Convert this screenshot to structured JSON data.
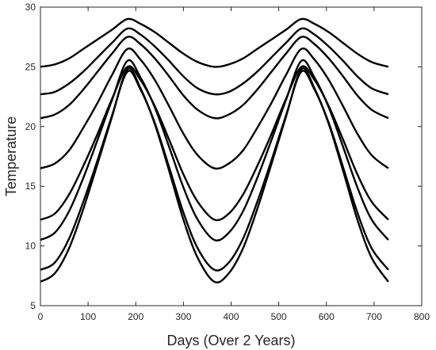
{
  "chart_data": {
    "type": "line",
    "xlabel": "Days (Over 2 Years)",
    "ylabel": "Temperature",
    "xlim": [
      0,
      800
    ],
    "ylim": [
      5,
      30
    ],
    "xticks": [
      "0",
      "100",
      "200",
      "300",
      "400",
      "500",
      "600",
      "700",
      "800"
    ],
    "yticks": [
      "5",
      "10",
      "15",
      "20",
      "25",
      "30"
    ],
    "grid": false,
    "legend": "none",
    "line_color": "#000000",
    "x": [
      0,
      30,
      60,
      90,
      120,
      150,
      182.5,
      210,
      240,
      270,
      300,
      330,
      365,
      395,
      425,
      455,
      485,
      515,
      547.5,
      575,
      605,
      635,
      665,
      695,
      730
    ],
    "series": [
      {
        "values": [
          25.0,
          25.2,
          25.7,
          26.5,
          27.3,
          28.1,
          29.0,
          28.6,
          27.9,
          27.0,
          26.1,
          25.4,
          25.0,
          25.2,
          25.7,
          26.5,
          27.3,
          28.1,
          29.0,
          28.6,
          27.9,
          27.0,
          26.1,
          25.4,
          25.0
        ]
      },
      {
        "values": [
          22.7,
          22.9,
          23.6,
          24.6,
          25.8,
          27.0,
          28.2,
          27.7,
          26.7,
          25.5,
          24.2,
          23.2,
          22.7,
          22.9,
          23.6,
          24.6,
          25.8,
          27.0,
          28.2,
          27.7,
          26.7,
          25.5,
          24.2,
          23.2,
          22.7
        ]
      },
      {
        "values": [
          20.7,
          21.0,
          21.8,
          23.1,
          24.6,
          26.1,
          27.5,
          26.9,
          25.7,
          24.2,
          22.6,
          21.4,
          20.7,
          21.0,
          21.8,
          23.1,
          24.6,
          26.1,
          27.5,
          26.9,
          25.7,
          24.2,
          22.6,
          21.4,
          20.7
        ]
      },
      {
        "values": [
          16.5,
          16.9,
          18.0,
          19.9,
          22.0,
          24.3,
          26.5,
          25.6,
          23.9,
          21.7,
          19.4,
          17.6,
          16.5,
          16.9,
          18.0,
          19.9,
          22.0,
          24.3,
          26.5,
          25.6,
          23.9,
          21.7,
          19.4,
          17.6,
          16.5
        ]
      },
      {
        "values": [
          12.2,
          12.7,
          14.3,
          16.7,
          19.4,
          22.3,
          25.0,
          23.9,
          21.7,
          18.9,
          16.0,
          13.7,
          12.2,
          12.7,
          14.3,
          16.7,
          19.4,
          22.3,
          25.0,
          23.9,
          21.7,
          18.9,
          16.0,
          13.7,
          12.2
        ]
      },
      {
        "values": [
          10.5,
          11.1,
          12.9,
          15.7,
          18.9,
          22.2,
          25.5,
          24.1,
          21.6,
          18.3,
          14.9,
          12.2,
          10.5,
          11.1,
          12.9,
          15.7,
          18.9,
          22.2,
          25.5,
          24.1,
          21.6,
          18.3,
          14.9,
          12.2,
          10.5
        ]
      },
      {
        "values": [
          8.0,
          8.6,
          10.6,
          13.7,
          17.2,
          20.9,
          24.6,
          23.1,
          20.3,
          16.6,
          12.8,
          9.8,
          8.0,
          8.6,
          10.6,
          13.7,
          17.2,
          20.9,
          24.6,
          23.1,
          20.3,
          16.6,
          12.8,
          9.8,
          8.0
        ]
      },
      {
        "values": [
          7.0,
          7.7,
          9.8,
          13.1,
          16.9,
          20.8,
          24.8,
          23.2,
          20.2,
          16.3,
          12.2,
          9.0,
          7.0,
          7.7,
          9.8,
          13.1,
          16.9,
          20.8,
          24.8,
          23.2,
          20.2,
          16.3,
          12.2,
          9.0,
          7.0
        ]
      }
    ]
  }
}
